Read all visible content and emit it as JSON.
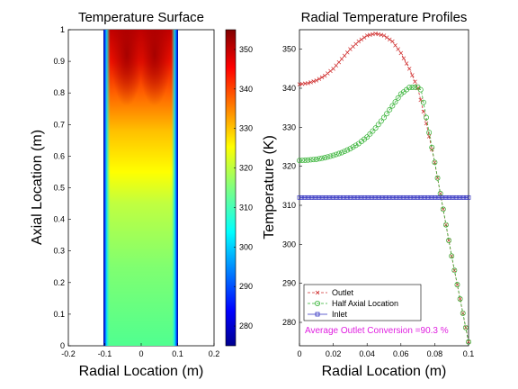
{
  "chart_data": [
    {
      "type": "heatmap",
      "title": "Temperature Surface",
      "xlabel": "Radial Location (m)",
      "ylabel": "Axial Location (m)",
      "xlim": [
        -0.2,
        0.2
      ],
      "ylim": [
        0,
        1
      ],
      "xticks": [
        "-0.2",
        "-0.1",
        "0",
        "0.1",
        "0.2"
      ],
      "yticks": [
        "0",
        "0.1",
        "0.2",
        "0.3",
        "0.4",
        "0.5",
        "0.6",
        "0.7",
        "0.8",
        "0.9",
        "1"
      ],
      "colorbar": {
        "range": [
          275,
          355
        ],
        "ticks": [
          "280",
          "290",
          "300",
          "310",
          "320",
          "330",
          "340",
          "350"
        ],
        "colormap": "jet"
      },
      "domain": {
        "x": [
          -0.1,
          0.1
        ],
        "y": [
          0,
          1
        ]
      }
    },
    {
      "type": "line",
      "title": "Radial Temperature Profiles",
      "xlabel": "Radial Location (m)",
      "ylabel": "Temperature (K)",
      "xlim": [
        0,
        0.1
      ],
      "ylim": [
        274,
        355
      ],
      "xticks": [
        "0",
        "0.02",
        "0.04",
        "0.06",
        "0.08",
        "0.1"
      ],
      "yticks": [
        "280",
        "290",
        "300",
        "310",
        "320",
        "330",
        "340",
        "350"
      ],
      "legend_position": "bottom-left",
      "series": [
        {
          "name": "Outlet",
          "color": "#d03030",
          "marker": "x",
          "x": [
            0,
            0.005,
            0.01,
            0.015,
            0.02,
            0.025,
            0.03,
            0.035,
            0.04,
            0.045,
            0.05,
            0.055,
            0.06,
            0.065,
            0.07,
            0.075,
            0.08,
            0.085,
            0.09,
            0.095,
            0.1
          ],
          "y": [
            341,
            341.3,
            342,
            343.2,
            345,
            347.5,
            350,
            352,
            353.5,
            354,
            353.5,
            352,
            349,
            345,
            340,
            331,
            321,
            309,
            297,
            286,
            275
          ]
        },
        {
          "name": "Half Axial Location",
          "color": "#30b030",
          "marker": "o",
          "x": [
            0,
            0.005,
            0.01,
            0.015,
            0.02,
            0.025,
            0.03,
            0.035,
            0.04,
            0.045,
            0.05,
            0.055,
            0.06,
            0.065,
            0.07,
            0.072,
            0.075,
            0.08,
            0.085,
            0.09,
            0.095,
            0.1
          ],
          "y": [
            321.5,
            321.6,
            321.8,
            322.2,
            322.8,
            323.5,
            324.5,
            325.8,
            327.5,
            329.8,
            332.5,
            335.5,
            338.5,
            340.2,
            340.3,
            339.5,
            332.5,
            321,
            309,
            297,
            286,
            275
          ]
        },
        {
          "name": "Inlet",
          "color": "#3030c0",
          "marker": "s",
          "x": [
            0,
            0.1
          ],
          "y": [
            312,
            312
          ]
        }
      ],
      "annotation": {
        "text": "Average Outlet Conversion =90.3 %",
        "color": "#e020e0"
      }
    }
  ]
}
